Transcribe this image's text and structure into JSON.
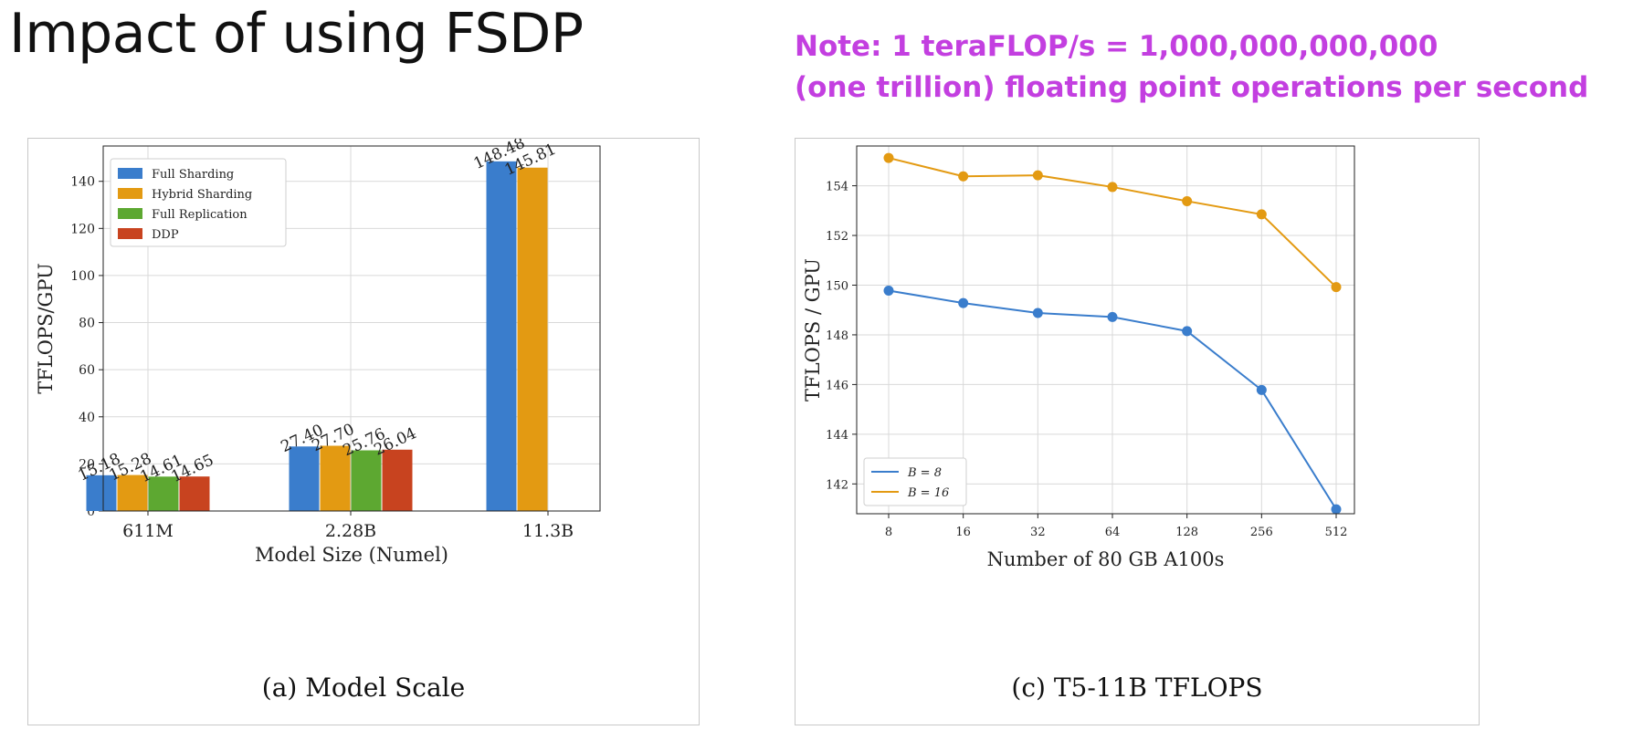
{
  "slide": {
    "title": "Impact of using FSDP",
    "note_line1": "Note: 1 teraFLOP/s = 1,000,000,000,000",
    "note_line2": "(one trillion) floating point operations per second",
    "note_color": "#c33fe0"
  },
  "chart_data": [
    {
      "type": "bar",
      "caption": "(a) Model Scale",
      "xlabel": "Model Size (Numel)",
      "ylabel": "TFLOPS/GPU",
      "ylim": [
        0,
        155
      ],
      "yticks": [
        0,
        20,
        40,
        60,
        80,
        100,
        120,
        140
      ],
      "grid": true,
      "legend_position": "top-left",
      "categories": [
        "611M",
        "2.28B",
        "11.3B"
      ],
      "series": [
        {
          "name": "Full Sharding",
          "color": "#3a7dcc",
          "values": [
            15.18,
            27.4,
            148.48
          ],
          "labels": [
            "15.18",
            "27.40",
            "148.48"
          ]
        },
        {
          "name": "Hybrid Sharding",
          "color": "#e39a12",
          "values": [
            15.28,
            27.7,
            145.81
          ],
          "labels": [
            "15.28",
            "27.70",
            "145.81"
          ]
        },
        {
          "name": "Full Replication",
          "color": "#5da831",
          "values": [
            14.61,
            25.76,
            null
          ],
          "labels": [
            "14.61",
            "25.76",
            null
          ]
        },
        {
          "name": "DDP",
          "color": "#c8431f",
          "values": [
            14.65,
            26.04,
            null
          ],
          "labels": [
            "14.65",
            "26.04",
            null
          ]
        }
      ]
    },
    {
      "type": "line",
      "caption": "(c) T5-11B TFLOPS",
      "xlabel": "Number of 80 GB A100s",
      "ylabel": "TFLOPS / GPU",
      "x": [
        "8",
        "16",
        "32",
        "64",
        "128",
        "256",
        "512"
      ],
      "ylim": [
        140.8,
        155.6
      ],
      "yticks": [
        142,
        144,
        146,
        148,
        150,
        152,
        154
      ],
      "grid": true,
      "legend_position": "bottom-left",
      "series": [
        {
          "name": "B = 8",
          "color": "#3a7dcc",
          "values": [
            149.78,
            149.28,
            148.88,
            148.72,
            148.15,
            145.78,
            140.98
          ]
        },
        {
          "name": "B = 16",
          "color": "#e39a12",
          "values": [
            155.12,
            154.38,
            154.42,
            153.95,
            153.38,
            152.85,
            149.92
          ]
        }
      ]
    }
  ]
}
